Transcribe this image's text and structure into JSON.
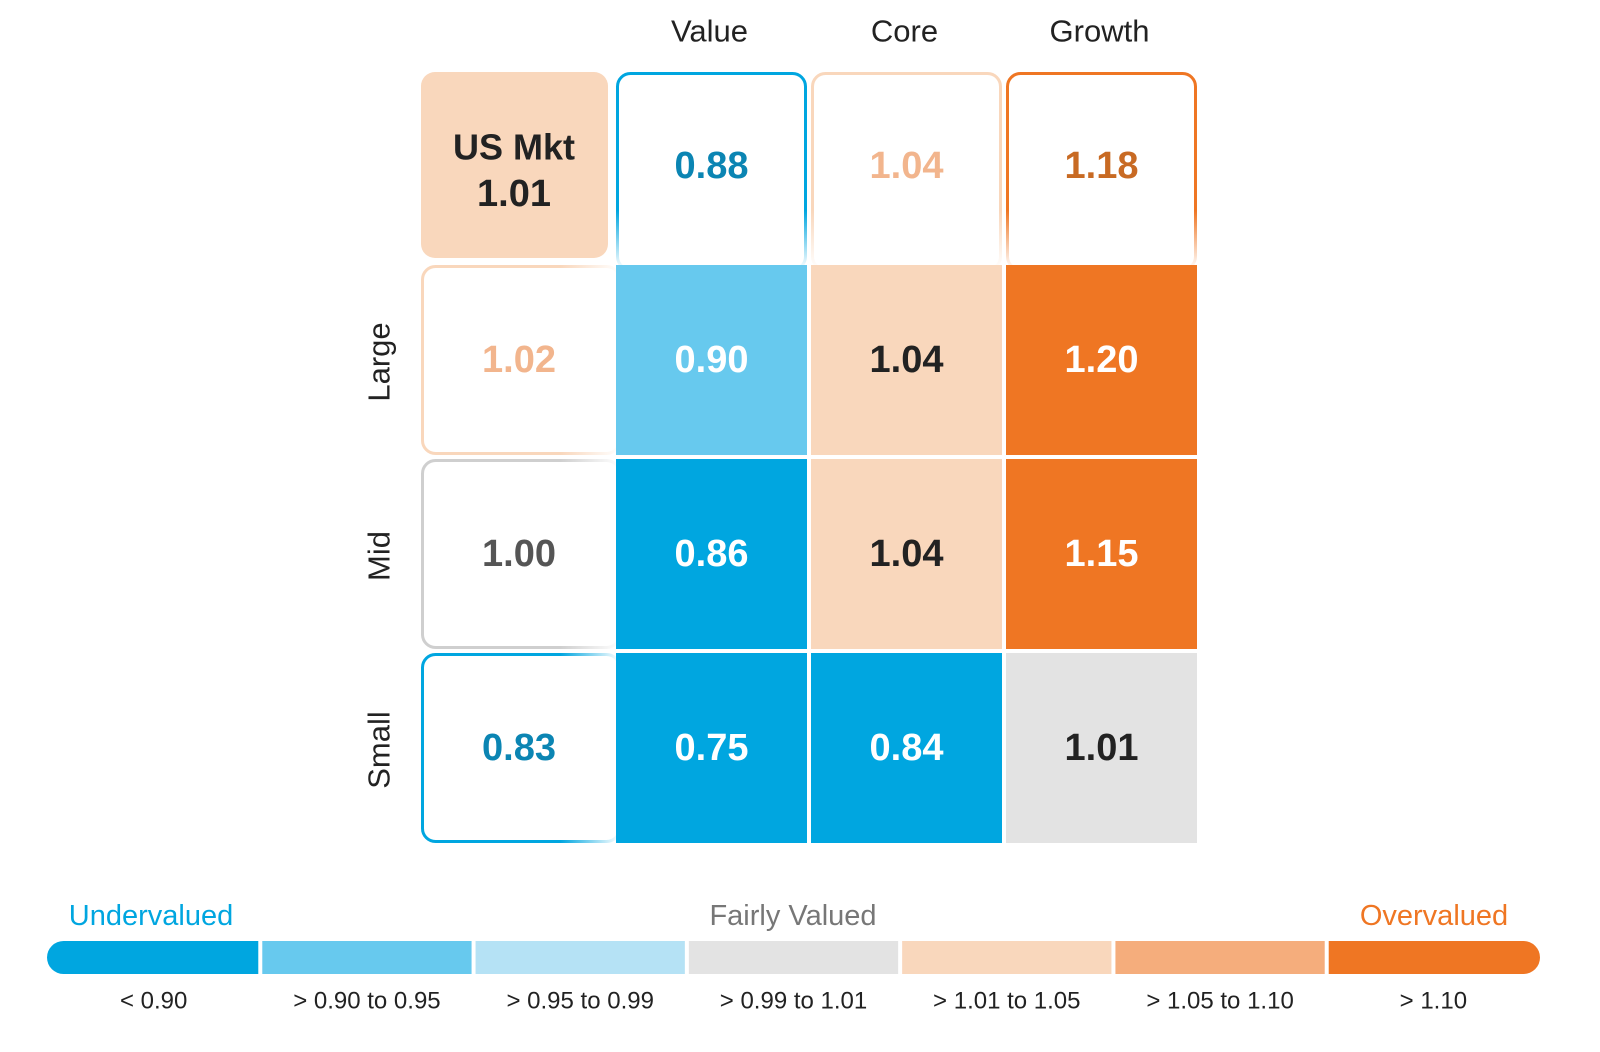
{
  "chart_data": {
    "type": "heatmap",
    "columns": [
      "Value",
      "Core",
      "Growth"
    ],
    "rows": [
      "Large",
      "Mid",
      "Small"
    ],
    "values": [
      [
        0.9,
        1.04,
        1.2
      ],
      [
        0.86,
        1.04,
        1.15
      ],
      [
        0.75,
        0.84,
        1.01
      ]
    ],
    "value_labels": [
      [
        "0.90",
        "1.04",
        "1.20"
      ],
      [
        "0.86",
        "1.04",
        "1.15"
      ],
      [
        "0.75",
        "0.84",
        "1.01"
      ]
    ],
    "column_totals": [
      0.88,
      1.04,
      1.18
    ],
    "column_total_labels": [
      "0.88",
      "1.04",
      "1.18"
    ],
    "row_totals": [
      1.02,
      1.0,
      0.83
    ],
    "row_total_labels": [
      "1.02",
      "1.00",
      "0.83"
    ],
    "market": {
      "label": "US Mkt",
      "value": 1.01,
      "value_label": "1.01"
    },
    "legend": {
      "left_label": "Undervalued",
      "center_label": "Fairly Valued",
      "right_label": "Overvalued",
      "bins": [
        {
          "label": "< 0.90",
          "color": "#00a6e0"
        },
        {
          "label": "> 0.90 to 0.95",
          "color": "#67c9ee"
        },
        {
          "label": "> 0.95 to 0.99",
          "color": "#b5e2f5"
        },
        {
          "label": "> 0.99 to 1.01",
          "color": "#e3e3e3"
        },
        {
          "label": "> 1.01 to 1.05",
          "color": "#f9d7bc"
        },
        {
          "label": "> 1.05 to 1.10",
          "color": "#f5ad7c"
        },
        {
          "label": "> 1.10",
          "color": "#ef7623"
        }
      ]
    },
    "colors": {
      "undervalued": "#00a6e0",
      "undervalued_text": "#0b85b3",
      "fair_text": "#555555",
      "overvalued": "#ef7623",
      "overvalued_light": "#f9d7bc",
      "overvalued_light_text": "#f2b58d",
      "overvalued_mid_text": "#c86a23",
      "dark_text": "#222222"
    }
  }
}
